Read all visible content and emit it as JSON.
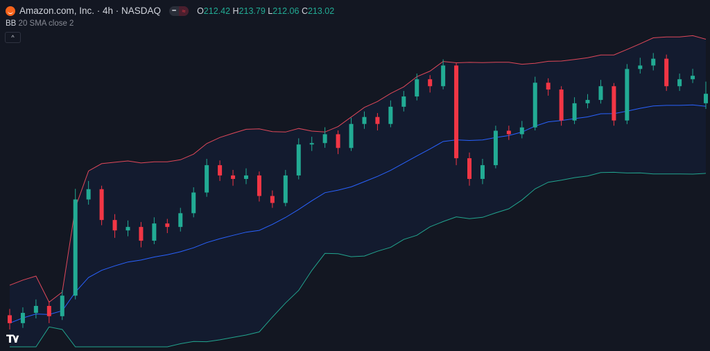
{
  "header": {
    "title": "Amazon.com, Inc. · 4h · NASDAQ",
    "ohlc": {
      "o_label": "O",
      "o": "212.42",
      "h_label": "H",
      "h": "213.79",
      "l_label": "L",
      "l": "212.06",
      "c_label": "C",
      "c": "213.02"
    },
    "pill_left_icon": "minus-icon",
    "pill_right_icon": "approx-icon"
  },
  "indicator": {
    "name": "BB",
    "params": "20 SMA close 2"
  },
  "collapse_icon": "chevron-up-icon",
  "watermark": "TV",
  "colors": {
    "background": "#131722",
    "up": "#22ab94",
    "down": "#f23645",
    "bb_upper": "#e0485a",
    "bb_lower": "#22a58f",
    "bb_basis": "#2962ff",
    "bb_fill": "rgba(41,98,255,0.06)"
  },
  "chart_data": {
    "type": "candlestick",
    "ylim": [
      197,
      217.2
    ],
    "grid": false,
    "bollinger": {
      "length": 20,
      "source": "close",
      "stddev": 2
    },
    "candles": [
      [
        199.0,
        199.4,
        198.1,
        198.5
      ],
      [
        198.5,
        199.5,
        198.2,
        199.15
      ],
      [
        199.15,
        200.0,
        198.8,
        199.59
      ],
      [
        199.59,
        199.9,
        198.5,
        198.94
      ],
      [
        198.94,
        200.6,
        198.7,
        200.24
      ],
      [
        200.24,
        207.0,
        200.0,
        206.33
      ],
      [
        206.33,
        207.5,
        206.0,
        206.98
      ],
      [
        206.98,
        207.2,
        204.7,
        205.03
      ],
      [
        205.03,
        205.4,
        203.9,
        204.37
      ],
      [
        204.37,
        205.0,
        204.0,
        204.59
      ],
      [
        204.59,
        204.9,
        203.3,
        203.72
      ],
      [
        203.72,
        205.2,
        203.5,
        204.81
      ],
      [
        204.81,
        205.1,
        204.2,
        204.59
      ],
      [
        204.59,
        205.8,
        204.3,
        205.46
      ],
      [
        205.46,
        207.1,
        205.2,
        206.77
      ],
      [
        206.77,
        208.9,
        206.5,
        208.5
      ],
      [
        208.5,
        208.8,
        207.5,
        207.85
      ],
      [
        207.85,
        208.2,
        207.2,
        207.63
      ],
      [
        207.63,
        208.3,
        207.3,
        207.85
      ],
      [
        207.85,
        208.1,
        206.2,
        206.55
      ],
      [
        206.55,
        206.9,
        205.8,
        206.11
      ],
      [
        206.11,
        208.2,
        205.9,
        207.85
      ],
      [
        207.85,
        210.2,
        207.6,
        209.81
      ],
      [
        209.81,
        210.3,
        209.4,
        209.9
      ],
      [
        209.9,
        210.9,
        209.6,
        210.46
      ],
      [
        210.46,
        210.7,
        209.2,
        209.59
      ],
      [
        209.59,
        211.5,
        209.4,
        211.11
      ],
      [
        211.11,
        211.9,
        210.8,
        211.55
      ],
      [
        211.55,
        211.8,
        210.7,
        211.11
      ],
      [
        211.11,
        212.6,
        210.9,
        212.2
      ],
      [
        212.2,
        213.2,
        211.9,
        212.85
      ],
      [
        212.85,
        214.3,
        212.6,
        213.94
      ],
      [
        213.94,
        214.2,
        213.1,
        213.5
      ],
      [
        213.5,
        215.2,
        213.3,
        214.81
      ],
      [
        214.81,
        215.0,
        208.5,
        208.94
      ],
      [
        208.94,
        209.3,
        207.2,
        207.63
      ],
      [
        207.63,
        208.9,
        207.3,
        208.5
      ],
      [
        208.5,
        211.0,
        208.3,
        210.68
      ],
      [
        210.68,
        211.0,
        210.1,
        210.46
      ],
      [
        210.46,
        211.3,
        210.2,
        210.89
      ],
      [
        210.89,
        214.1,
        210.7,
        213.72
      ],
      [
        213.72,
        214.0,
        212.9,
        213.29
      ],
      [
        213.29,
        213.5,
        211.0,
        211.33
      ],
      [
        211.33,
        212.8,
        211.1,
        212.42
      ],
      [
        212.42,
        213.0,
        212.1,
        212.63
      ],
      [
        212.63,
        213.9,
        212.4,
        213.5
      ],
      [
        213.5,
        213.7,
        211.0,
        211.33
      ],
      [
        211.33,
        214.9,
        211.1,
        214.59
      ],
      [
        214.59,
        215.3,
        214.3,
        214.81
      ],
      [
        214.81,
        215.6,
        214.5,
        215.24
      ],
      [
        215.24,
        215.5,
        213.2,
        213.5
      ],
      [
        213.5,
        214.3,
        213.2,
        213.94
      ],
      [
        213.94,
        214.6,
        213.7,
        214.16
      ],
      [
        212.42,
        213.79,
        212.06,
        213.02
      ]
    ]
  }
}
